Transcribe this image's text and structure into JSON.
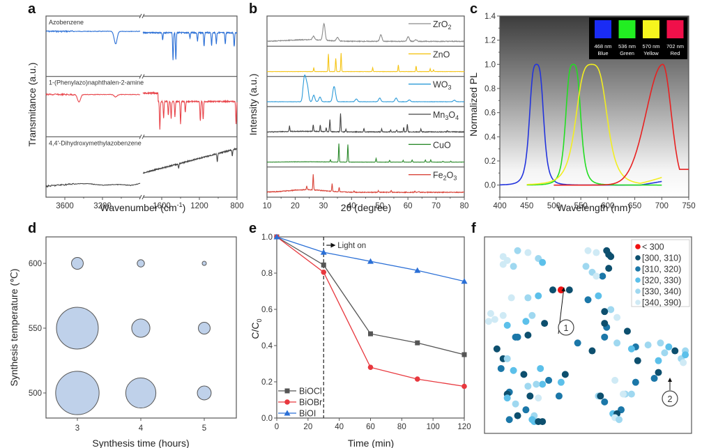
{
  "chart_data": [
    {
      "panel": "a",
      "type": "line",
      "title": "",
      "xlabel": "Wavenumber (cm-1)",
      "ylabel": "Transmitance (a.u.)",
      "x_ticks": [
        "3600",
        "3200",
        "1600",
        "1200",
        "800"
      ],
      "x_break": true,
      "x_range_left": [
        3800,
        2800
      ],
      "x_range_right": [
        1800,
        800
      ],
      "series": [
        {
          "name": "Azobenzene",
          "color": "#2a6fd6",
          "peaks": [
            3060,
            1590,
            1480,
            1450,
            1300,
            1220,
            1150,
            1070,
            1020,
            925,
            830
          ]
        },
        {
          "name": "1-(Phenylazo)naphthalen-2-amine",
          "color": "#e8444a",
          "peaks": [
            3450,
            3060,
            1620,
            1580,
            1530,
            1500,
            1460,
            1400,
            1350,
            1190,
            1160,
            810
          ]
        },
        {
          "name": "4,4'-Dihydroxymethylazobenzene",
          "color": "#444444",
          "peaks": [
            3200,
            1420,
            1010,
            850
          ]
        }
      ]
    },
    {
      "panel": "b",
      "type": "line",
      "xlabel": "2θ (degree)",
      "ylabel": "Intensity (a.u.)",
      "xlim": [
        10,
        80
      ],
      "x_ticks": [
        "10",
        "20",
        "30",
        "40",
        "50",
        "60",
        "70",
        "80"
      ],
      "series": [
        {
          "name": "ZrO2",
          "label_main": "ZrO",
          "label_sub": "2",
          "label_sub2": "",
          "label_mid": "",
          "color": "#8a8a8a",
          "peaks": [
            [
              26.5,
              0.2
            ],
            [
              30.2,
              0.9
            ],
            [
              35,
              0.2
            ],
            [
              50.4,
              0.35
            ],
            [
              60.1,
              0.25
            ],
            [
              62.9,
              0.08
            ]
          ],
          "broad": 0.25
        },
        {
          "name": "ZnO",
          "label_main": "ZnO",
          "label_sub": "",
          "label_sub2": "",
          "label_mid": "",
          "color": "#f5c518",
          "peaks": [
            [
              26.6,
              0.2
            ],
            [
              31.8,
              0.95
            ],
            [
              34.4,
              0.7
            ],
            [
              36.3,
              1.0
            ],
            [
              47.5,
              0.2
            ],
            [
              56.6,
              0.35
            ],
            [
              62.9,
              0.3
            ],
            [
              67.9,
              0.15
            ],
            [
              69.1,
              0.1
            ]
          ],
          "broad": 0
        },
        {
          "name": "WO3",
          "label_main": "WO",
          "label_sub": "3",
          "label_sub2": "",
          "label_mid": "",
          "color": "#2b9ad8",
          "peaks": [
            [
              23.1,
              1.0
            ],
            [
              23.7,
              0.9
            ],
            [
              24.4,
              0.7
            ],
            [
              26.6,
              0.35
            ],
            [
              28.8,
              0.25
            ],
            [
              33.6,
              0.55
            ],
            [
              34.1,
              0.45
            ],
            [
              41.7,
              0.15
            ],
            [
              50,
              0.2
            ],
            [
              55.8,
              0.2
            ],
            [
              60.5,
              0.1
            ],
            [
              76.5,
              0.08
            ]
          ],
          "broad": 0
        },
        {
          "name": "Mn3O4",
          "label_main": "Mn",
          "label_sub": "3",
          "label_mid": "O",
          "label_sub2": "4",
          "color": "#444444",
          "peaks": [
            [
              18,
              0.3
            ],
            [
              26.4,
              0.35
            ],
            [
              28.9,
              0.35
            ],
            [
              31,
              0.2
            ],
            [
              32.3,
              0.65
            ],
            [
              36.1,
              1.0
            ],
            [
              38,
              0.15
            ],
            [
              44.4,
              0.2
            ],
            [
              50.7,
              0.15
            ],
            [
              53.9,
              0.1
            ],
            [
              56,
              0.1
            ],
            [
              58.5,
              0.25
            ],
            [
              59.8,
              0.4
            ],
            [
              64.6,
              0.15
            ],
            [
              74,
              0.08
            ]
          ],
          "broad": 0.1
        },
        {
          "name": "CuO",
          "label_main": "CuO",
          "label_sub": "",
          "label_sub2": "",
          "label_mid": "",
          "color": "#2e8b2e",
          "peaks": [
            [
              32.5,
              0.12
            ],
            [
              35.5,
              1.0
            ],
            [
              38.7,
              0.95
            ],
            [
              48.7,
              0.2
            ],
            [
              53.5,
              0.1
            ],
            [
              58.3,
              0.1
            ],
            [
              61.5,
              0.12
            ],
            [
              66.2,
              0.12
            ],
            [
              68.1,
              0.12
            ],
            [
              72.4,
              0.05
            ],
            [
              75.2,
              0.05
            ]
          ],
          "broad": 0.05
        },
        {
          "name": "Fe2O3",
          "label_main": "Fe",
          "label_sub": "2",
          "label_mid": "O",
          "label_sub2": "3",
          "color": "#d9453a",
          "peaks": [
            [
              24.1,
              0.2
            ],
            [
              26.4,
              0.85
            ],
            [
              33.1,
              0.4
            ],
            [
              35.6,
              0.25
            ],
            [
              40.9,
              0.08
            ],
            [
              49.5,
              0.08
            ],
            [
              54.1,
              0.1
            ],
            [
              62.5,
              0.06
            ],
            [
              64,
              0.05
            ]
          ],
          "broad": 0.4
        }
      ]
    },
    {
      "panel": "c",
      "type": "line",
      "xlabel": "Wavelength (nm)",
      "ylabel": "Normalized PL",
      "xlim": [
        400,
        750
      ],
      "ylim": [
        -0.1,
        1.4
      ],
      "x_ticks": [
        "400",
        "450",
        "500",
        "550",
        "600",
        "650",
        "700",
        "750"
      ],
      "y_ticks": [
        "0.0",
        "0.2",
        "0.4",
        "0.6",
        "0.8",
        "1.0",
        "1.2",
        "1.4"
      ],
      "series": [
        {
          "name": "Blue",
          "peak_nm": 468,
          "color": "#2233dd",
          "fwhm": 28,
          "x_start": 400,
          "x_end": 700,
          "tail": 0.03
        },
        {
          "name": "Green",
          "peak_nm": 536,
          "color": "#22dd22",
          "fwhm": 30,
          "x_start": 450,
          "x_end": 700,
          "tail": 0
        },
        {
          "name": "Yellow",
          "peak_nm": 570,
          "color": "#f2ee20",
          "fwhm": 62,
          "x_start": 450,
          "x_end": 700,
          "tail": 0.06
        },
        {
          "name": "Red",
          "peak_nm": 702,
          "color": "#e82020",
          "fwhm": 80,
          "x_start": 500,
          "x_end": 750,
          "tail": 0
        }
      ],
      "inset_legend": [
        {
          "wavelength": "468 nm",
          "name": "Blue",
          "color": "#1a2cf5"
        },
        {
          "wavelength": "536 nm",
          "name": "Green",
          "color": "#22ee22"
        },
        {
          "wavelength": "570 nm",
          "name": "Yellow",
          "color": "#f6f51e"
        },
        {
          "wavelength": "702 nm",
          "name": "Red",
          "color": "#f0104a"
        }
      ]
    },
    {
      "panel": "d",
      "type": "scatter",
      "subtype": "bubble",
      "xlabel": "Synthesis time (hours)",
      "ylabel": "Synthesis temperature (℃)",
      "x_ticks": [
        "3",
        "4",
        "5"
      ],
      "y_ticks": [
        "500",
        "550",
        "600"
      ],
      "xlim": [
        2.5,
        5.5
      ],
      "ylim": [
        480,
        620
      ],
      "points": [
        {
          "x": 3,
          "y": 600,
          "size": 8
        },
        {
          "x": 4,
          "y": 600,
          "size": 3
        },
        {
          "x": 5,
          "y": 600,
          "size": 1
        },
        {
          "x": 3,
          "y": 550,
          "size": 100
        },
        {
          "x": 4,
          "y": 550,
          "size": 19
        },
        {
          "x": 5,
          "y": 550,
          "size": 8
        },
        {
          "x": 3,
          "y": 500,
          "size": 108
        },
        {
          "x": 4,
          "y": 500,
          "size": 52
        },
        {
          "x": 5,
          "y": 500,
          "size": 11
        }
      ],
      "fill_color": "#bfd1ea",
      "stroke_color": "#555555"
    },
    {
      "panel": "e",
      "type": "line",
      "xlabel": "Time (min)",
      "ylabel": "C/C0",
      "xlim": [
        0,
        120
      ],
      "ylim": [
        0,
        1.0
      ],
      "x_ticks": [
        "0",
        "20",
        "40",
        "60",
        "80",
        "100",
        "120"
      ],
      "y_ticks": [
        "0.0",
        "0.2",
        "0.4",
        "0.6",
        "0.8",
        "1.0"
      ],
      "x": [
        0,
        30,
        60,
        90,
        120
      ],
      "annotation": {
        "text": "Light on",
        "x": 30
      },
      "legend_position": "bottom-left",
      "series": [
        {
          "name": "BiOCl",
          "color": "#555555",
          "marker": "square",
          "values": [
            1.0,
            0.845,
            0.465,
            0.415,
            0.35
          ]
        },
        {
          "name": "BiOBr",
          "color": "#e8383e",
          "marker": "circle",
          "values": [
            1.0,
            0.805,
            0.28,
            0.215,
            0.175
          ]
        },
        {
          "name": "BiOI",
          "color": "#2a6fd6",
          "marker": "triangle",
          "values": [
            1.0,
            0.915,
            0.865,
            0.815,
            0.755
          ]
        }
      ]
    },
    {
      "panel": "f",
      "type": "scatter",
      "legend_position": "top-right",
      "categories": [
        {
          "label": "< 300",
          "color": "#f01010"
        },
        {
          "label": "[300, 310)",
          "color": "#0d4f6e"
        },
        {
          "label": "[310, 320)",
          "color": "#1b77a8"
        },
        {
          "label": "[320, 330)",
          "color": "#5cc0ea"
        },
        {
          "label": "[330, 340)",
          "color": "#9fd8f0"
        },
        {
          "label": "[340, 390)",
          "color": "#cfeaf5"
        }
      ],
      "annotations": [
        {
          "text": "1",
          "target_category": "< 300"
        },
        {
          "text": "2",
          "target_category": "[300, 310)"
        }
      ],
      "points": [
        [
          0.16,
          0.07,
          4
        ],
        [
          0.21,
          0.08,
          5
        ],
        [
          0.09,
          0.1,
          5
        ],
        [
          0.11,
          0.12,
          5
        ],
        [
          0.26,
          0.11,
          4
        ],
        [
          0.28,
          0.13,
          3
        ],
        [
          0.09,
          0.14,
          5
        ],
        [
          0.14,
          0.15,
          4
        ],
        [
          0.5,
          0.07,
          5
        ],
        [
          0.54,
          0.08,
          5
        ],
        [
          0.6,
          0.09,
          1
        ],
        [
          0.59,
          0.07,
          1
        ],
        [
          0.61,
          0.1,
          1
        ],
        [
          0.49,
          0.15,
          4
        ],
        [
          0.52,
          0.18,
          4
        ],
        [
          0.57,
          0.2,
          2
        ],
        [
          0.6,
          0.16,
          1
        ],
        [
          0.54,
          0.2,
          5
        ],
        [
          0.37,
          0.27,
          0
        ],
        [
          0.33,
          0.27,
          1
        ],
        [
          0.26,
          0.3,
          3
        ],
        [
          0.21,
          0.31,
          4
        ],
        [
          0.5,
          0.32,
          2
        ],
        [
          0.41,
          0.27,
          1
        ],
        [
          0.13,
          0.31,
          5
        ],
        [
          0.03,
          0.39,
          5
        ],
        [
          0.05,
          0.42,
          5
        ],
        [
          0.02,
          0.43,
          5
        ],
        [
          0.09,
          0.4,
          5
        ],
        [
          0.11,
          0.45,
          3
        ],
        [
          0.2,
          0.43,
          3
        ],
        [
          0.23,
          0.4,
          4
        ],
        [
          0.29,
          0.44,
          1
        ],
        [
          0.15,
          0.51,
          2
        ],
        [
          0.16,
          0.51,
          2
        ],
        [
          0.21,
          0.5,
          1
        ],
        [
          0.06,
          0.57,
          1
        ],
        [
          0.09,
          0.62,
          1
        ],
        [
          0.11,
          0.62,
          4
        ],
        [
          0.08,
          0.67,
          2
        ],
        [
          0.14,
          0.68,
          3
        ],
        [
          0.19,
          0.7,
          1
        ],
        [
          0.27,
          0.67,
          3
        ],
        [
          0.31,
          0.73,
          2
        ],
        [
          0.28,
          0.75,
          3
        ],
        [
          0.25,
          0.75,
          4
        ],
        [
          0.21,
          0.76,
          4
        ],
        [
          0.39,
          0.7,
          1
        ],
        [
          0.37,
          0.74,
          3
        ],
        [
          0.12,
          0.79,
          2
        ],
        [
          0.11,
          0.8,
          1
        ],
        [
          0.11,
          0.82,
          3
        ],
        [
          0.22,
          0.81,
          1
        ],
        [
          0.26,
          0.82,
          5
        ],
        [
          0.36,
          0.81,
          2
        ],
        [
          0.15,
          0.85,
          4
        ],
        [
          0.2,
          0.88,
          2
        ],
        [
          0.24,
          0.91,
          4
        ],
        [
          0.16,
          0.91,
          1
        ],
        [
          0.12,
          0.93,
          2
        ],
        [
          0.23,
          0.93,
          3
        ],
        [
          0.24,
          0.94,
          3
        ],
        [
          0.26,
          0.94,
          1
        ],
        [
          0.28,
          0.94,
          1
        ],
        [
          0.52,
          0.58,
          1
        ],
        [
          0.45,
          0.54,
          2
        ],
        [
          0.55,
          0.3,
          3
        ],
        [
          0.58,
          0.51,
          2
        ],
        [
          0.59,
          0.46,
          2
        ],
        [
          0.58,
          0.44,
          1
        ],
        [
          0.64,
          0.54,
          4
        ],
        [
          0.69,
          0.48,
          1
        ],
        [
          0.64,
          0.41,
          5
        ],
        [
          0.61,
          0.37,
          4
        ],
        [
          0.58,
          0.38,
          1
        ],
        [
          0.73,
          0.56,
          2
        ],
        [
          0.71,
          0.57,
          3
        ],
        [
          0.79,
          0.55,
          4
        ],
        [
          0.85,
          0.54,
          4
        ],
        [
          0.89,
          0.56,
          3
        ],
        [
          0.92,
          0.58,
          1
        ],
        [
          0.87,
          0.59,
          4
        ],
        [
          0.97,
          0.58,
          4
        ],
        [
          0.95,
          0.62,
          4
        ],
        [
          0.96,
          0.64,
          5
        ],
        [
          0.97,
          0.6,
          3
        ],
        [
          0.74,
          0.63,
          1
        ],
        [
          0.84,
          0.63,
          3
        ],
        [
          0.84,
          0.69,
          1
        ],
        [
          0.82,
          0.72,
          2
        ],
        [
          0.73,
          0.74,
          2
        ],
        [
          0.63,
          0.73,
          5
        ],
        [
          0.68,
          0.8,
          4
        ],
        [
          0.67,
          0.8,
          5
        ],
        [
          0.71,
          0.8,
          4
        ],
        [
          0.55,
          0.81,
          4
        ],
        [
          0.56,
          0.81,
          1
        ],
        [
          0.58,
          0.84,
          2
        ],
        [
          0.66,
          0.88,
          2
        ],
        [
          0.62,
          0.9,
          3
        ],
        [
          0.64,
          0.9,
          1
        ],
        [
          0.63,
          0.92,
          5
        ],
        [
          0.65,
          0.93,
          4
        ]
      ]
    }
  ],
  "figure": {
    "panel_letters": [
      "a",
      "b",
      "c",
      "d",
      "e",
      "f"
    ],
    "axis_titles": {
      "a_x": "Wavenumber (cm",
      "a_x_sup": "-1",
      "a_x_end": ")",
      "a_y": "Transmitance (a.u.)",
      "b_x": "2θ (degree)",
      "b_y": "Intensity (a.u.)",
      "c_x": "Wavelength (nm)",
      "c_y": "Normalized PL",
      "d_x": "Synthesis time (hours)",
      "d_y": "Synthesis temperature (℃)",
      "e_x": "Time (min)",
      "e_y": "C/C",
      "e_y_sub": "0"
    }
  }
}
